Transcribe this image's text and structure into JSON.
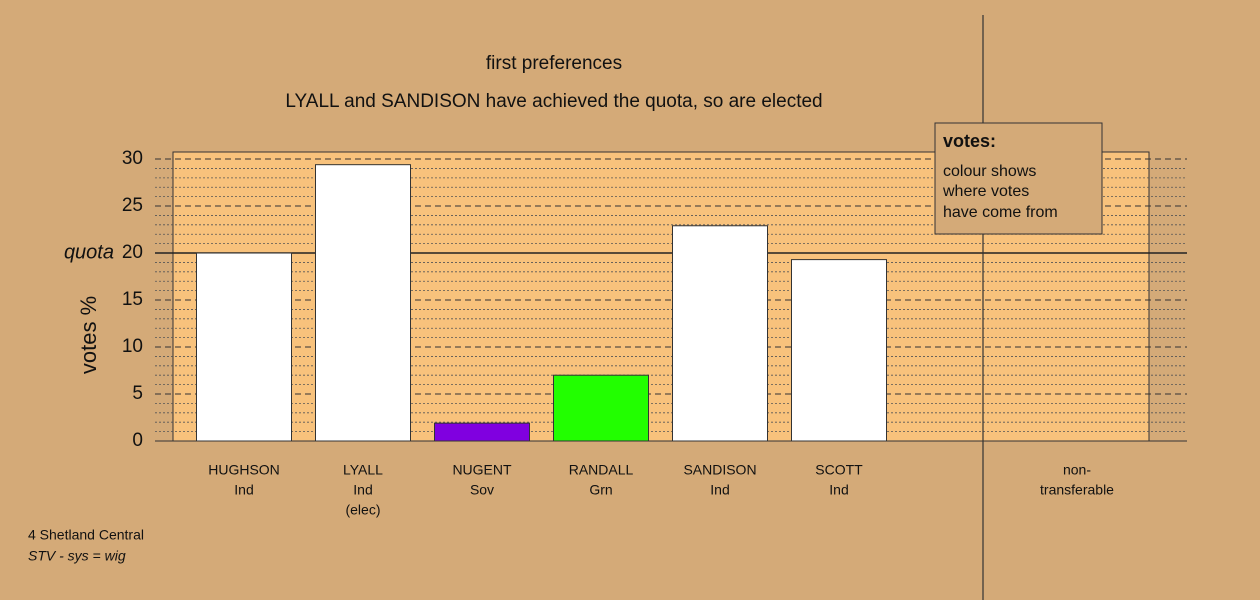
{
  "chart_data": {
    "type": "bar",
    "title": "first preferences",
    "subtitle": "LYALL and SANDISON have achieved the quota, so are elected",
    "y_label": "votes %",
    "categories": [
      [
        "HUGHSON",
        "Ind"
      ],
      [
        "LYALL",
        "Ind",
        "(elec)"
      ],
      [
        "NUGENT",
        "Sov"
      ],
      [
        "RANDALL",
        "Grn"
      ],
      [
        "SANDISON",
        "Ind"
      ],
      [
        "SCOTT",
        "Ind"
      ],
      null,
      [
        "non-",
        "transferable"
      ]
    ],
    "values": [
      20.0,
      29.4,
      1.9,
      7.0,
      22.9,
      19.3,
      null,
      0
    ],
    "colors": [
      "#ffffff",
      "#ffffff",
      "#8000e0",
      "#22ff00",
      "#ffffff",
      "#ffffff",
      null,
      "#ffffff"
    ],
    "ylim": [
      0,
      30.75
    ],
    "yticks": [
      0,
      5,
      10,
      15,
      20,
      25,
      30
    ],
    "yminorticks": [
      1,
      2,
      3,
      4,
      6,
      7,
      8,
      9,
      11,
      12,
      13,
      14,
      16,
      17,
      18,
      19,
      21,
      22,
      23,
      24,
      26,
      27,
      28,
      29
    ],
    "quota": 20,
    "quota_label": "quota",
    "legend": {
      "title": "votes:",
      "lines": [
        "colour shows",
        "where votes",
        "have come from"
      ]
    },
    "footer": [
      "4 Shetland Central",
      "STV - sys = wig"
    ]
  }
}
